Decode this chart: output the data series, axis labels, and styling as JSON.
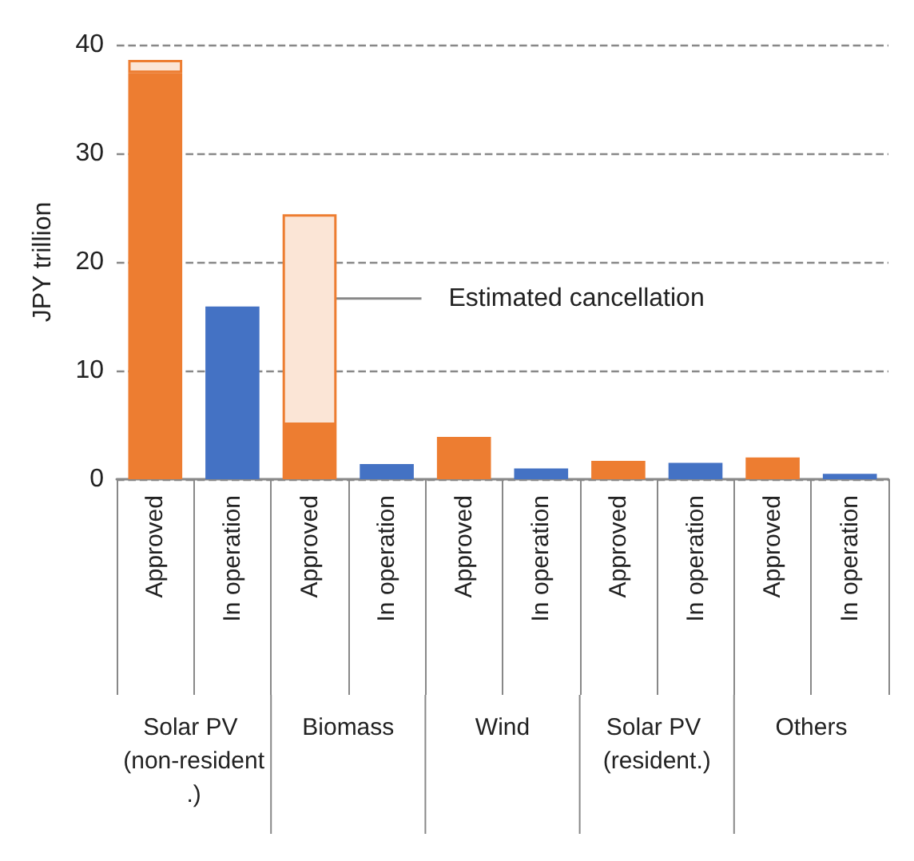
{
  "chart_data": {
    "type": "bar",
    "stacked": true,
    "ylabel": "JPY trillion",
    "categories": [
      "Approved",
      "In operation",
      "Approved",
      "In operation",
      "Approved",
      "In operation",
      "Approved",
      "In operation",
      "Approved",
      "In operation"
    ],
    "series": [
      {
        "color": "#ed7d31",
        "values": [
          37.4,
          null,
          5.0,
          null,
          3.9,
          null,
          1.7,
          null,
          2.0,
          null
        ]
      },
      {
        "color": "#4472c4",
        "values": [
          null,
          15.9,
          null,
          1.4,
          null,
          1.0,
          null,
          1.5,
          null,
          0.5
        ]
      },
      {
        "name": "Estimated cancellation",
        "color": "#fbe5d6",
        "values": [
          1.2,
          null,
          19.4,
          null,
          null,
          null,
          null,
          null,
          null,
          null
        ]
      }
    ],
    "annotations": [
      "Solar PV (non-resident.)",
      "Biomass",
      "Wind",
      "Solar PV (resident.)",
      "Others"
    ],
    "ylim": [
      0,
      40
    ],
    "yticks": [
      0,
      10,
      20,
      30,
      40
    ],
    "grid": "y",
    "legend": false
  }
}
